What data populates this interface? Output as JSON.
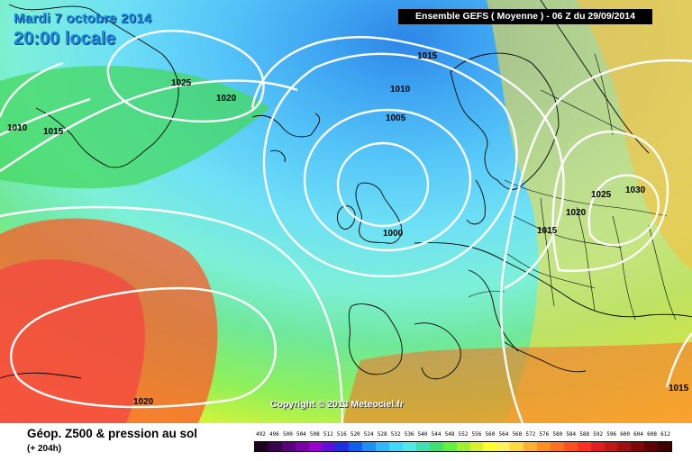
{
  "header": {
    "date_label": "Mardi 7 octobre 2014",
    "time_label": "20:00 locale",
    "run_label": "Ensemble GEFS ( Moyenne )  -  06 Z du 29/09/2014"
  },
  "copyright": "Copyright © 2013 Meteociel.fr",
  "footer": {
    "variable_title": "Géop. Z500 & pression au sol",
    "forecast_hour": "(+ 204h)"
  },
  "isobar_labels": [
    "1025",
    "1020",
    "1015",
    "1010",
    "1005",
    "1000",
    "1015",
    "1020",
    "1025",
    "1030",
    "1010",
    "1015",
    "1020",
    "1015"
  ],
  "color_scale": {
    "values": [
      "492",
      "496",
      "500",
      "504",
      "508",
      "512",
      "516",
      "520",
      "524",
      "528",
      "532",
      "536",
      "540",
      "544",
      "548",
      "552",
      "556",
      "560",
      "564",
      "568",
      "572",
      "576",
      "580",
      "584",
      "588",
      "592",
      "596",
      "600",
      "604",
      "608",
      "612"
    ],
    "colors": [
      "#200020",
      "#3c0050",
      "#5a007a",
      "#7a00a8",
      "#9a00d0",
      "#6010d8",
      "#2030e0",
      "#1060f0",
      "#2090f8",
      "#30b8ff",
      "#40d8ff",
      "#50e8e8",
      "#40e0b0",
      "#40e070",
      "#60f040",
      "#a0f030",
      "#d8f030",
      "#ffff30",
      "#fff060",
      "#ffd840",
      "#ffb030",
      "#ff9020",
      "#ff7020",
      "#ff5020",
      "#ff3020",
      "#e02020",
      "#c01818",
      "#a01010",
      "#800808",
      "#600000",
      "#400000"
    ]
  }
}
